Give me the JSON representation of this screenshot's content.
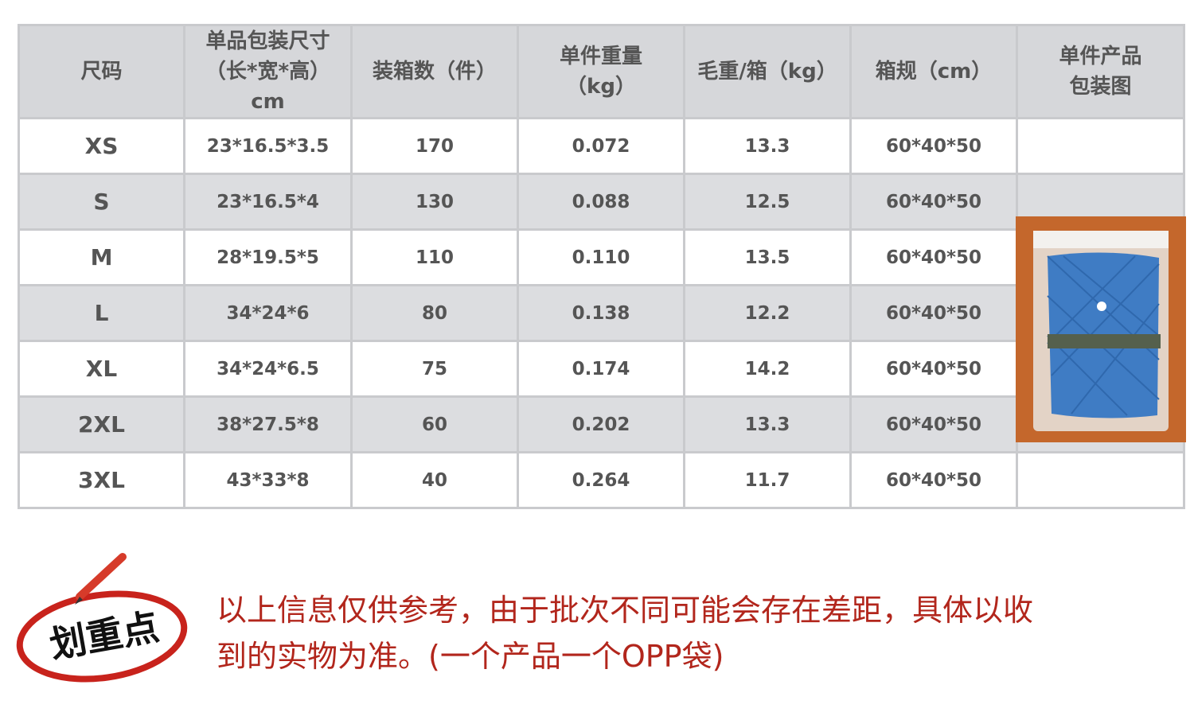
{
  "table": {
    "headers": [
      [
        "尺码"
      ],
      [
        "单品包装尺寸",
        "（长*宽*高）",
        "cm"
      ],
      [
        "装箱数（件）"
      ],
      [
        "单件重量",
        "（kg）"
      ],
      [
        "毛重/箱（kg）"
      ],
      [
        "箱规（cm）"
      ],
      [
        "单件产品",
        "包装图"
      ]
    ],
    "rows": [
      [
        "XS",
        "23*16.5*3.5",
        "170",
        "0.072",
        "13.3",
        "60*40*50"
      ],
      [
        "S",
        "23*16.5*4",
        "130",
        "0.088",
        "12.5",
        "60*40*50"
      ],
      [
        "M",
        "28*19.5*5",
        "110",
        "0.110",
        "13.5",
        "60*40*50"
      ],
      [
        "L",
        "34*24*6",
        "80",
        "0.138",
        "12.2",
        "60*40*50"
      ],
      [
        "XL",
        "34*24*6.5",
        "75",
        "0.174",
        "14.2",
        "60*40*50"
      ],
      [
        "2XL",
        "38*27.5*8",
        "60",
        "0.202",
        "13.3",
        "60*40*50"
      ],
      [
        "3XL",
        "43*33*8",
        "40",
        "0.264",
        "11.7",
        "60*40*50"
      ]
    ]
  },
  "notice": {
    "badge": "划重点",
    "lines": [
      "以上信息仅供参考，由于批次不同可能会存在差距，具体以收",
      "到的实物为准。(一个产品一个OPP袋)"
    ]
  }
}
